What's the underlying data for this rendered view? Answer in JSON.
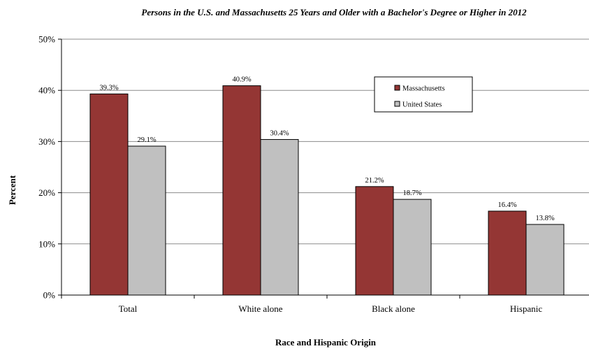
{
  "chart_data": {
    "type": "bar",
    "title": "Persons in the U.S. and Massachusetts 25 Years and Older with a Bachelor's Degree or Higher in 2012",
    "xlabel": "Race and Hispanic Origin",
    "ylabel": "Percent",
    "categories": [
      "Total",
      "White alone",
      "Black alone",
      "Hispanic"
    ],
    "series": [
      {
        "name": "Massachusetts",
        "values": [
          39.3,
          40.9,
          21.2,
          16.4
        ],
        "labels": [
          "39.3%",
          "40.9%",
          "21.2%",
          "16.4%"
        ],
        "color": "#943634"
      },
      {
        "name": "United States",
        "values": [
          29.1,
          30.4,
          18.7,
          13.8
        ],
        "labels": [
          "29.1%",
          "30.4%",
          "18.7%",
          "13.8%"
        ],
        "color": "#c0c0c0"
      }
    ],
    "ylim": [
      0,
      50
    ],
    "yticks": [
      0,
      10,
      20,
      30,
      40,
      50
    ],
    "ytick_labels": [
      "0%",
      "10%",
      "20%",
      "30%",
      "40%",
      "50%"
    ],
    "grid": true,
    "legend_position": "top-right"
  }
}
